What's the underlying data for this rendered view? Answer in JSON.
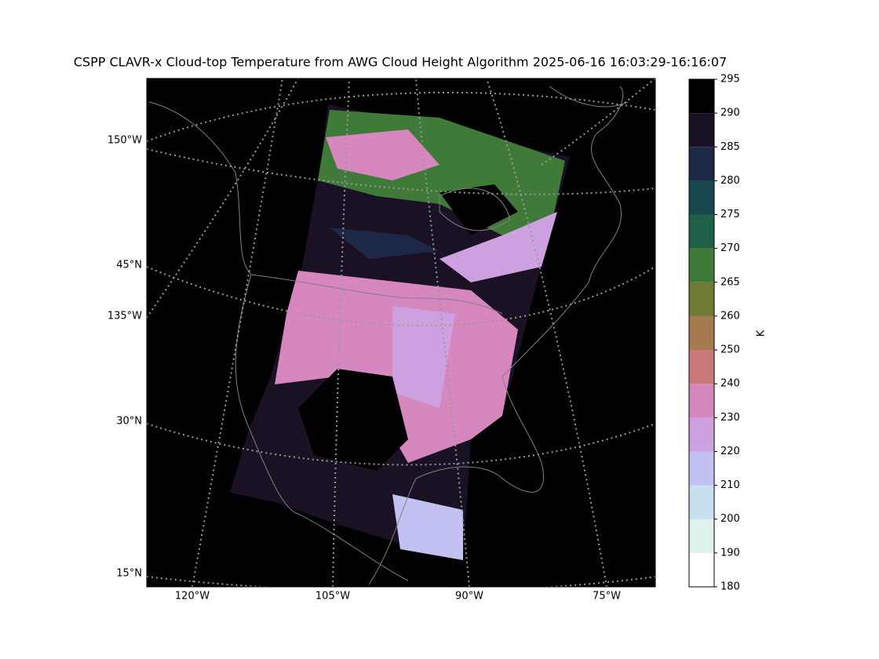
{
  "title": "CSPP CLAVR-x Cloud-top Temperature from AWG Cloud Height Algorithm 2025-06-16 16:03:29-16:16:07",
  "map": {
    "left_labels": [
      "150°W",
      "45°N",
      "135°W",
      "30°N",
      "15°N"
    ],
    "bottom_labels": [
      "120°W",
      "105°W",
      "90°W",
      "75°W"
    ]
  },
  "colorbar": {
    "label": "K",
    "bounds": [
      180,
      190,
      200,
      210,
      220,
      230,
      240,
      250,
      260,
      265,
      270,
      275,
      280,
      285,
      290,
      295
    ],
    "colors": [
      "#ffffff",
      "#dff2ec",
      "#c6e0f0",
      "#c2c2f2",
      "#cda0e0",
      "#d687bd",
      "#c97878",
      "#a57a4f",
      "#6f7a35",
      "#3f7a39",
      "#1f6148",
      "#17464f",
      "#1c2845",
      "#1b1125",
      "#000000"
    ]
  }
}
